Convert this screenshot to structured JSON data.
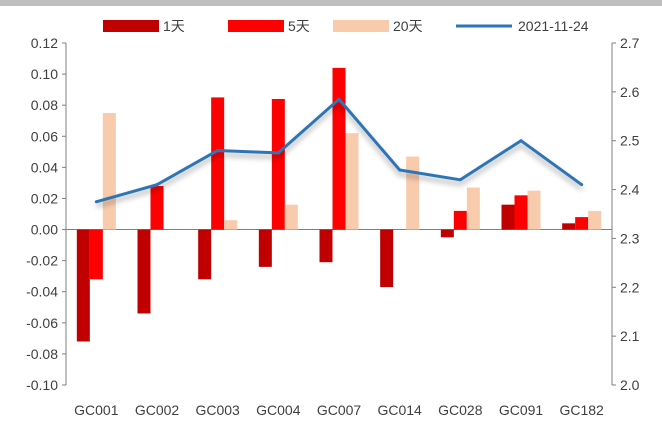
{
  "chart_data": {
    "type": "bar",
    "title": "",
    "xlabel": "",
    "ylabel": "",
    "categories": [
      "GC001",
      "GC002",
      "GC003",
      "GC004",
      "GC007",
      "GC014",
      "GC028",
      "GC091",
      "GC182"
    ],
    "series": [
      {
        "name": "1天",
        "type": "bar",
        "axis": "left",
        "color": "#C00000",
        "values": [
          -0.072,
          -0.054,
          -0.032,
          -0.024,
          -0.021,
          -0.037,
          -0.005,
          0.016,
          0.004
        ]
      },
      {
        "name": "5天",
        "type": "bar",
        "axis": "left",
        "color": "#FF0000",
        "values": [
          -0.032,
          0.028,
          0.085,
          0.084,
          0.104,
          0.0,
          0.012,
          0.022,
          0.008
        ]
      },
      {
        "name": "20天",
        "type": "bar",
        "axis": "left",
        "color": "#F8CBAD",
        "values": [
          0.075,
          0.0,
          0.006,
          0.016,
          0.062,
          0.047,
          0.027,
          0.025,
          0.012
        ]
      },
      {
        "name": "2021-11-24",
        "type": "line",
        "axis": "right",
        "color": "#2E75B6",
        "values": [
          2.375,
          2.41,
          2.48,
          2.475,
          2.585,
          2.44,
          2.42,
          2.5,
          2.41
        ]
      }
    ],
    "y_left": {
      "min": -0.1,
      "max": 0.12,
      "ticks": [
        "0.12",
        "0.10",
        "0.08",
        "0.06",
        "0.04",
        "0.02",
        "0.00",
        "-0.02",
        "-0.04",
        "-0.06",
        "-0.08",
        "-0.10"
      ]
    },
    "y_right": {
      "min": 2.0,
      "max": 2.7,
      "ticks": [
        "2.7",
        "2.6",
        "2.5",
        "2.4",
        "2.3",
        "2.2",
        "2.1",
        "2.0"
      ]
    },
    "legend_position": "top",
    "grid": false
  }
}
